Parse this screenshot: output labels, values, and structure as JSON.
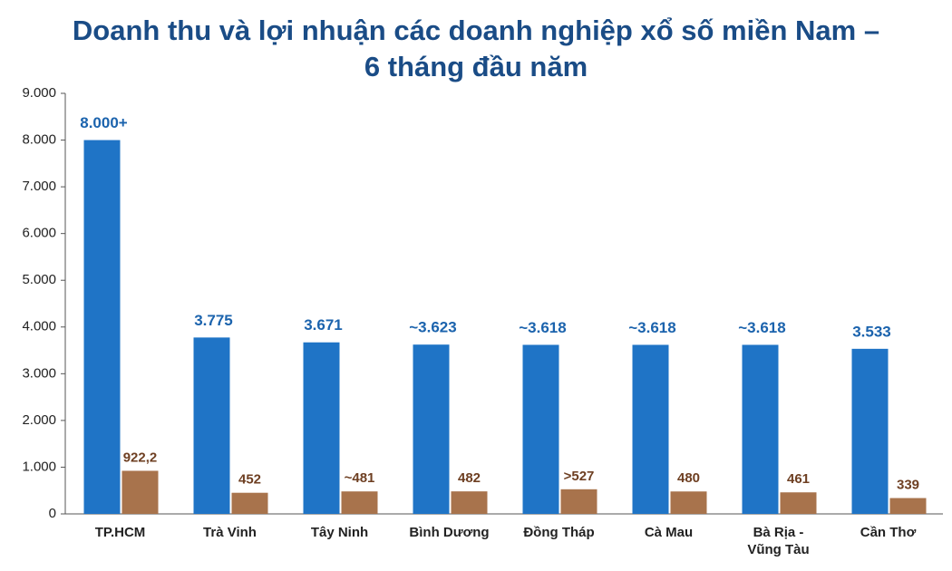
{
  "chart_data": {
    "type": "bar",
    "title": "Doanh thu và lợi nhuận các doanh nghiệp xổ số miền Nam – 6 tháng đầu năm",
    "categories": [
      "TP.HCM",
      "Trà Vinh",
      "Tây Ninh",
      "Bình Dương",
      "Đồng Tháp",
      "Cà Mau",
      "Bà Rịa - Vũng Tàu",
      "Cần Thơ"
    ],
    "series": [
      {
        "color": "#1f74c6",
        "label_color": "#1b63ad",
        "values": [
          8000,
          3775,
          3671,
          3623,
          3618,
          3618,
          3618,
          3533
        ],
        "value_labels": [
          "8.000+",
          "3.775",
          "3.671",
          "~3.623",
          "~3.618",
          "~3.618",
          "~3.618",
          "3.533"
        ]
      },
      {
        "color": "#a8734c",
        "label_color": "#6e3f22",
        "values": [
          922.2,
          452,
          481,
          482,
          527,
          480,
          461,
          339
        ],
        "value_labels": [
          "922,2",
          "452",
          "~481",
          "482",
          ">527",
          "480",
          "461",
          "339"
        ]
      }
    ],
    "ylim": [
      0,
      9000
    ],
    "yticks": [
      0,
      {
        "value": 1000,
        "label": "1.000"
      },
      {
        "value": 2000,
        "label": "2.000"
      },
      {
        "value": 3000,
        "label": "3.000"
      },
      {
        "value": 4000,
        "label": "4.000"
      },
      {
        "value": 5000,
        "label": "5.000"
      },
      {
        "value": 6000,
        "label": "6.000"
      },
      {
        "value": 7000,
        "label": "7.000"
      },
      {
        "value": 8000,
        "label": "8.000"
      },
      {
        "value": 9000,
        "label": "9.000"
      }
    ]
  }
}
